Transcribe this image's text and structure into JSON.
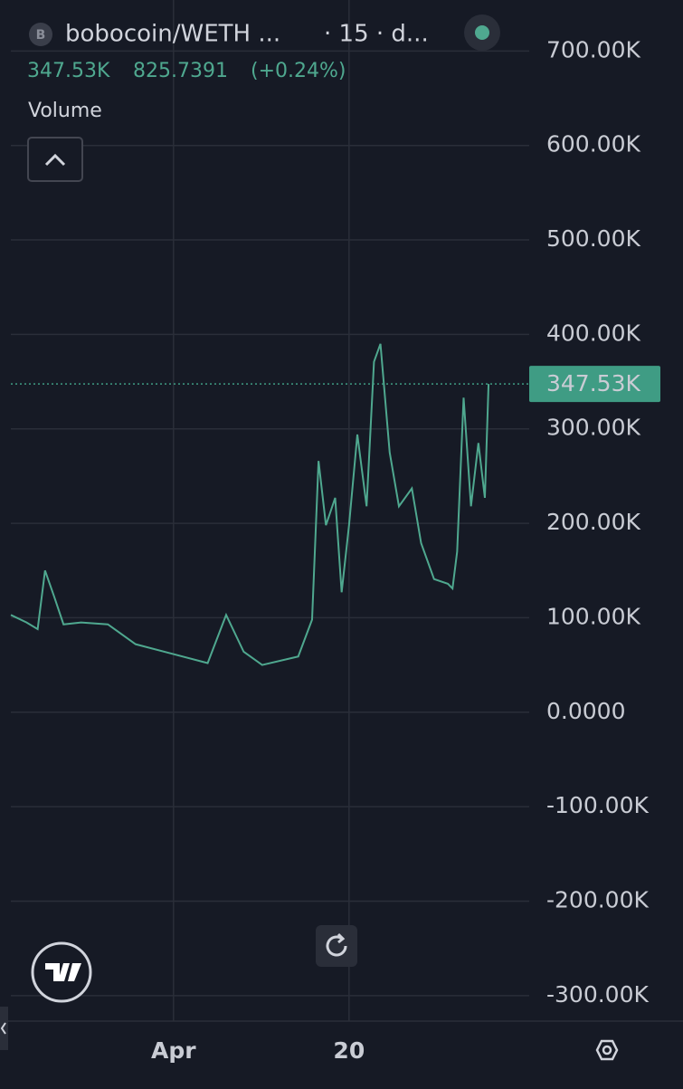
{
  "chart_data": {
    "type": "line",
    "symbol": "bobocoin/WETH ...",
    "coin_icon_letter": "B",
    "interval": "· 15 · d...",
    "last_value": {
      "value": 347530,
      "label": "347.53K"
    },
    "change_value": "825.7391",
    "change_percent": "(+0.24%)",
    "indicator": "Volume",
    "x": [
      73.4,
      75.1,
      76.3,
      77.1,
      78.1,
      79.1,
      81,
      83.9,
      86.9,
      90.8,
      94.7,
      96.7,
      98.6,
      100.6,
      104.5,
      106,
      106.7,
      107.5,
      108.5,
      109.2,
      110,
      110.9,
      111.9,
      112.7,
      113.4,
      114.4,
      115.4,
      116.8,
      117.8,
      119.2,
      120.7,
      121.2,
      121.7,
      122.4,
      123.2,
      124,
      124.7,
      125.1
    ],
    "series": [
      {
        "color": "#4fa88f",
        "values": [
          103000,
          95000,
          88000,
          150000,
          122000,
          93000,
          95000,
          93000,
          72000,
          62000,
          52000,
          103000,
          64000,
          50000,
          59000,
          98000,
          266000,
          198000,
          227000,
          127000,
          198000,
          294000,
          218000,
          371000,
          390000,
          275000,
          218000,
          237000,
          179000,
          141000,
          136000,
          131000,
          170000,
          333000,
          218000,
          285000,
          227000,
          347530
        ]
      }
    ],
    "xlim": [
      73.4,
      129.5
    ],
    "xticks": [
      {
        "value": 91,
        "label": "Apr"
      },
      {
        "value": 110,
        "label": "20"
      }
    ],
    "ylim": [
      -327000,
      754000
    ],
    "yticks": [
      {
        "value": -300000,
        "label": "-300.00K"
      },
      {
        "value": -200000,
        "label": "-200.00K"
      },
      {
        "value": -100000,
        "label": "-100.00K"
      },
      {
        "value": 0,
        "label": "0.0000"
      },
      {
        "value": 100000,
        "label": "100.00K"
      },
      {
        "value": 200000,
        "label": "200.00K"
      },
      {
        "value": 300000,
        "label": "300.00K"
      },
      {
        "value": 400000,
        "label": "400.00K"
      },
      {
        "value": 500000,
        "label": "500.00K"
      },
      {
        "value": 600000,
        "label": "600.00K"
      },
      {
        "value": 700000,
        "label": "700.00K"
      }
    ],
    "grid": true,
    "up_color": "#3f9c84",
    "text_color": "#c9ccd4"
  }
}
